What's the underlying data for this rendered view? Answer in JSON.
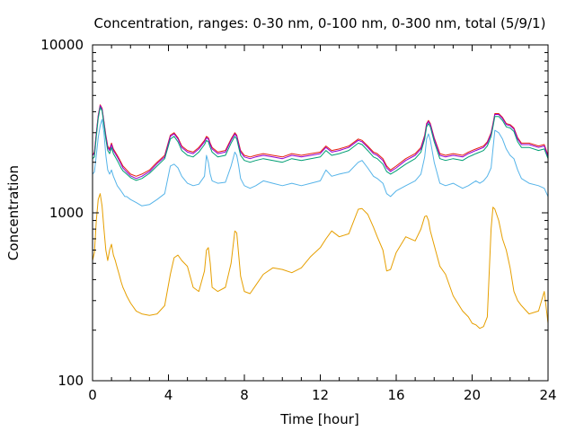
{
  "chart_data": {
    "type": "line",
    "title": "Concentration, ranges: 0-30 nm, 0-100 nm, 0-300 nm, total (5/9/1)",
    "xlabel": "Time [hour]",
    "ylabel": "Concentration",
    "xlim": [
      0,
      24
    ],
    "ylim": [
      100,
      10000
    ],
    "yscale": "log",
    "x_ticks": [
      0,
      4,
      8,
      12,
      16,
      20,
      24
    ],
    "x_tick_labels": [
      "0",
      "4",
      "8",
      "12",
      "16",
      "20",
      "24"
    ],
    "y_ticks": [
      100,
      1000,
      10000
    ],
    "y_tick_labels": [
      "100",
      "1000",
      "10000"
    ],
    "grid": false,
    "legend": "none",
    "x": [
      0,
      0.1,
      0.2,
      0.3,
      0.4,
      0.5,
      0.6,
      0.7,
      0.8,
      0.9,
      1.0,
      1.1,
      1.2,
      1.3,
      1.4,
      1.5,
      1.6,
      1.7,
      1.8,
      2.0,
      2.3,
      2.6,
      3.0,
      3.4,
      3.8,
      4.1,
      4.3,
      4.5,
      4.7,
      5.0,
      5.3,
      5.6,
      5.9,
      6.0,
      6.1,
      6.2,
      6.3,
      6.6,
      7.0,
      7.3,
      7.5,
      7.6,
      7.7,
      7.8,
      8.0,
      8.3,
      8.6,
      9.0,
      9.5,
      10.0,
      10.5,
      11.0,
      11.5,
      12.0,
      12.3,
      12.6,
      13.0,
      13.5,
      14.0,
      14.2,
      14.5,
      14.8,
      15.0,
      15.3,
      15.5,
      15.7,
      16.0,
      16.5,
      17.0,
      17.3,
      17.5,
      17.6,
      17.7,
      17.8,
      18.0,
      18.3,
      18.6,
      19.0,
      19.5,
      19.8,
      20.0,
      20.2,
      20.4,
      20.6,
      20.8,
      21.0,
      21.1,
      21.2,
      21.4,
      21.6,
      21.8,
      22.0,
      22.2,
      22.4,
      22.6,
      23.0,
      23.5,
      23.8,
      24.0
    ],
    "series": [
      {
        "color": "#e51e10",
        "values": [
          2200,
          2300,
          3000,
          3800,
          4400,
          4200,
          3500,
          2900,
          2500,
          2400,
          2600,
          2400,
          2300,
          2200,
          2100,
          2000,
          1900,
          1850,
          1800,
          1700,
          1650,
          1700,
          1800,
          2000,
          2200,
          2900,
          3000,
          2800,
          2500,
          2350,
          2300,
          2450,
          2700,
          2850,
          2800,
          2600,
          2450,
          2300,
          2350,
          2750,
          3000,
          2900,
          2600,
          2350,
          2200,
          2150,
          2200,
          2250,
          2200,
          2150,
          2250,
          2200,
          2250,
          2300,
          2500,
          2350,
          2400,
          2500,
          2750,
          2700,
          2500,
          2300,
          2250,
          2100,
          1900,
          1800,
          1900,
          2100,
          2250,
          2450,
          2900,
          3400,
          3550,
          3400,
          2800,
          2250,
          2200,
          2250,
          2200,
          2300,
          2350,
          2400,
          2450,
          2500,
          2650,
          3000,
          3400,
          3900,
          3900,
          3700,
          3400,
          3350,
          3200,
          2800,
          2600,
          2600,
          2500,
          2550,
          2200
        ]
      },
      {
        "color": "#9400d3",
        "values": [
          2200,
          2250,
          2950,
          3750,
          4350,
          4150,
          3450,
          2850,
          2450,
          2350,
          2550,
          2350,
          2250,
          2150,
          2050,
          1950,
          1850,
          1800,
          1750,
          1660,
          1600,
          1650,
          1760,
          1960,
          2150,
          2850,
          2950,
          2750,
          2450,
          2300,
          2250,
          2400,
          2650,
          2800,
          2750,
          2550,
          2400,
          2250,
          2300,
          2700,
          2950,
          2850,
          2550,
          2300,
          2150,
          2100,
          2150,
          2200,
          2150,
          2100,
          2200,
          2150,
          2200,
          2250,
          2450,
          2300,
          2350,
          2450,
          2700,
          2650,
          2450,
          2250,
          2200,
          2050,
          1850,
          1760,
          1850,
          2050,
          2200,
          2400,
          2850,
          3350,
          3500,
          3350,
          2750,
          2200,
          2150,
          2200,
          2150,
          2250,
          2300,
          2350,
          2400,
          2450,
          2600,
          2950,
          3350,
          3850,
          3850,
          3650,
          3350,
          3300,
          3150,
          2750,
          2550,
          2550,
          2450,
          2500,
          2150
        ]
      },
      {
        "color": "#009e73",
        "values": [
          2100,
          2150,
          2850,
          3650,
          4250,
          4050,
          3350,
          2750,
          2350,
          2250,
          2450,
          2250,
          2150,
          2050,
          1950,
          1850,
          1780,
          1740,
          1700,
          1620,
          1560,
          1600,
          1720,
          1900,
          2100,
          2750,
          2850,
          2650,
          2350,
          2200,
          2150,
          2300,
          2550,
          2700,
          2650,
          2450,
          2300,
          2150,
          2200,
          2600,
          2850,
          2750,
          2450,
          2200,
          2050,
          2000,
          2050,
          2100,
          2050,
          2000,
          2100,
          2050,
          2100,
          2150,
          2350,
          2200,
          2250,
          2350,
          2600,
          2550,
          2350,
          2150,
          2100,
          1950,
          1760,
          1700,
          1780,
          1950,
          2100,
          2300,
          2750,
          3250,
          3400,
          3250,
          2650,
          2100,
          2050,
          2100,
          2050,
          2150,
          2200,
          2250,
          2300,
          2350,
          2500,
          2850,
          3250,
          3750,
          3750,
          3550,
          3250,
          3200,
          3050,
          2650,
          2450,
          2450,
          2350,
          2400,
          2100
        ]
      },
      {
        "color": "#56b4e9",
        "values": [
          1700,
          1750,
          2200,
          2800,
          3300,
          3600,
          3000,
          2200,
          1800,
          1700,
          1800,
          1650,
          1550,
          1450,
          1400,
          1350,
          1300,
          1250,
          1250,
          1200,
          1150,
          1100,
          1120,
          1200,
          1300,
          1900,
          1950,
          1850,
          1650,
          1500,
          1450,
          1480,
          1650,
          2200,
          2000,
          1700,
          1550,
          1500,
          1520,
          1900,
          2300,
          2200,
          1900,
          1600,
          1450,
          1400,
          1450,
          1550,
          1500,
          1450,
          1500,
          1450,
          1500,
          1550,
          1800,
          1650,
          1700,
          1750,
          2000,
          2050,
          1850,
          1650,
          1600,
          1500,
          1300,
          1250,
          1350,
          1450,
          1550,
          1700,
          2150,
          2750,
          2950,
          2700,
          2000,
          1500,
          1450,
          1500,
          1400,
          1450,
          1500,
          1550,
          1500,
          1550,
          1650,
          1850,
          2400,
          3100,
          3000,
          2750,
          2400,
          2200,
          2100,
          1800,
          1600,
          1500,
          1450,
          1400,
          1250
        ]
      },
      {
        "color": "#e69f00",
        "values": [
          520,
          580,
          900,
          1200,
          1300,
          1100,
          800,
          600,
          520,
          600,
          650,
          560,
          520,
          470,
          430,
          390,
          360,
          340,
          320,
          290,
          260,
          250,
          245,
          250,
          280,
          430,
          540,
          560,
          520,
          480,
          360,
          340,
          450,
          600,
          620,
          500,
          360,
          340,
          360,
          500,
          780,
          760,
          560,
          420,
          340,
          330,
          370,
          430,
          470,
          460,
          440,
          470,
          550,
          620,
          700,
          780,
          720,
          750,
          1050,
          1060,
          980,
          820,
          720,
          600,
          450,
          460,
          580,
          720,
          680,
          800,
          950,
          960,
          900,
          780,
          640,
          480,
          430,
          320,
          260,
          240,
          220,
          215,
          205,
          210,
          240,
          800,
          1080,
          1050,
          900,
          700,
          600,
          470,
          340,
          300,
          280,
          250,
          260,
          340,
          220
        ]
      }
    ]
  }
}
